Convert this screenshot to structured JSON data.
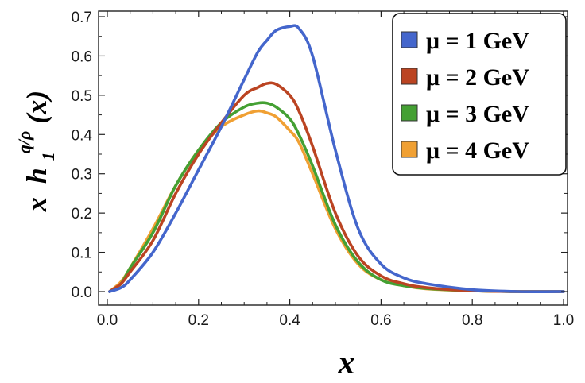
{
  "chart_data": {
    "type": "line",
    "xlabel": "x",
    "ylabel": {
      "prefix": "x",
      "func": "h",
      "sub": "1",
      "sup": "q/ρ",
      "arg": "(x)"
    },
    "xlim": [
      0,
      1.0
    ],
    "ylim": [
      -0.02,
      0.71
    ],
    "xticks": [
      "0.0",
      "0.2",
      "0.4",
      "0.6",
      "0.8",
      "1.0"
    ],
    "yticks": [
      "0.0",
      "0.1",
      "0.2",
      "0.3",
      "0.4",
      "0.5",
      "0.6",
      "0.7"
    ],
    "grid": false,
    "legend_position": "top-right",
    "x": [
      0.005,
      0.03,
      0.05,
      0.1,
      0.15,
      0.2,
      0.25,
      0.3,
      0.33,
      0.35,
      0.37,
      0.4,
      0.42,
      0.45,
      0.5,
      0.55,
      0.6,
      0.65,
      0.7,
      0.8,
      0.9,
      1.0
    ],
    "series": [
      {
        "name": "μ = 1 GeV",
        "color": "#4466cc",
        "values": [
          0.0,
          0.01,
          0.03,
          0.1,
          0.2,
          0.31,
          0.42,
          0.54,
          0.61,
          0.64,
          0.665,
          0.675,
          0.67,
          0.6,
          0.36,
          0.16,
          0.07,
          0.035,
          0.02,
          0.005,
          0.0,
          0.0
        ]
      },
      {
        "name": "μ = 2 GeV",
        "color": "#bb4422",
        "values": [
          0.0,
          0.02,
          0.05,
          0.13,
          0.25,
          0.35,
          0.43,
          0.5,
          0.52,
          0.53,
          0.528,
          0.5,
          0.46,
          0.37,
          0.2,
          0.09,
          0.04,
          0.02,
          0.01,
          0.002,
          0.0,
          0.0
        ]
      },
      {
        "name": "μ = 3 GeV",
        "color": "#44a033",
        "values": [
          0.0,
          0.02,
          0.06,
          0.15,
          0.27,
          0.36,
          0.43,
          0.47,
          0.48,
          0.48,
          0.47,
          0.44,
          0.4,
          0.32,
          0.17,
          0.075,
          0.03,
          0.015,
          0.008,
          0.002,
          0.0,
          0.0
        ]
      },
      {
        "name": "μ = 4 GeV",
        "color": "#f0a033",
        "values": [
          0.0,
          0.025,
          0.06,
          0.16,
          0.27,
          0.36,
          0.42,
          0.45,
          0.46,
          0.455,
          0.445,
          0.41,
          0.38,
          0.3,
          0.16,
          0.07,
          0.03,
          0.015,
          0.007,
          0.002,
          0.0,
          0.0
        ]
      }
    ]
  }
}
